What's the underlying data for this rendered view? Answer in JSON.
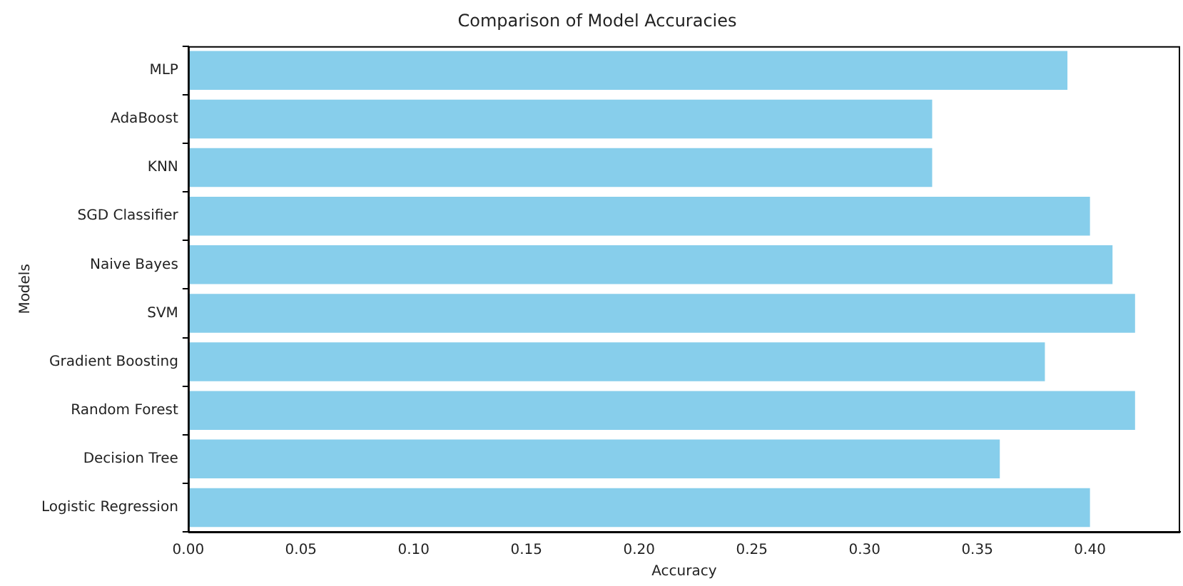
{
  "chart_data": {
    "type": "bar",
    "orientation": "horizontal",
    "title": "Comparison of Model Accuracies",
    "xlabel": "Accuracy",
    "ylabel": "Models",
    "categories": [
      "MLP",
      "AdaBoost",
      "KNN",
      "SGD Classifier",
      "Naive Bayes",
      "SVM",
      "Gradient Boosting",
      "Random Forest",
      "Decision Tree",
      "Logistic Regression"
    ],
    "values": [
      0.39,
      0.33,
      0.33,
      0.4,
      0.41,
      0.42,
      0.38,
      0.42,
      0.36,
      0.4
    ],
    "color": "#87ceeb",
    "xlim": [
      0,
      0.44
    ],
    "xticks": [
      {
        "value": 0,
        "label": "0.00"
      },
      {
        "value": 0.05,
        "label": "0.05"
      },
      {
        "value": 0.1,
        "label": "0.10"
      },
      {
        "value": 0.15,
        "label": "0.15"
      },
      {
        "value": 0.2,
        "label": "0.20"
      },
      {
        "value": 0.25,
        "label": "0.25"
      },
      {
        "value": 0.3,
        "label": "0.30"
      },
      {
        "value": 0.35,
        "label": "0.35"
      },
      {
        "value": 0.4,
        "label": "0.40"
      }
    ],
    "grid": false,
    "legend": false
  }
}
